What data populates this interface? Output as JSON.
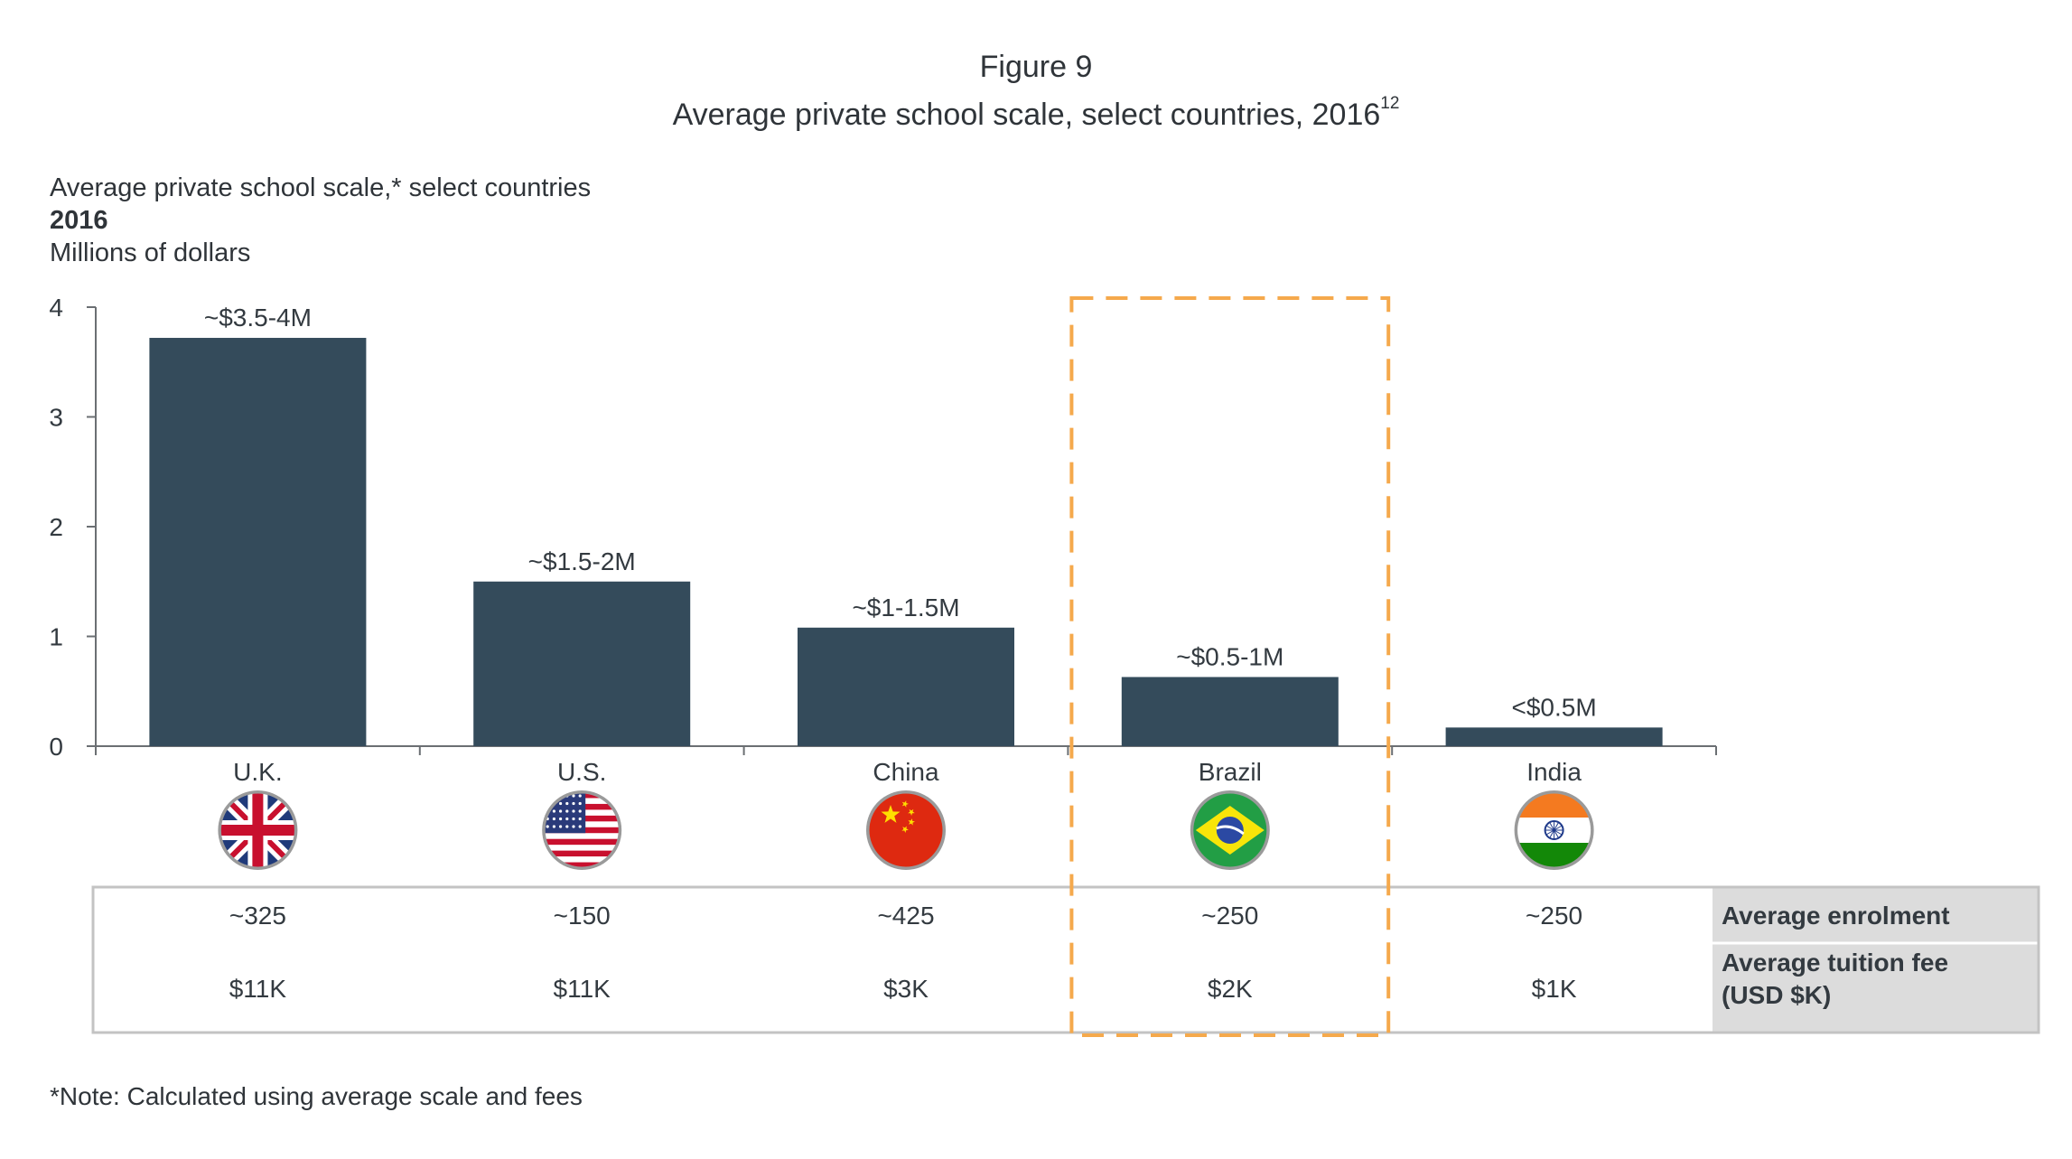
{
  "figure": {
    "label": "Figure 9",
    "subtitle": "Average private school scale, select countries, 2016",
    "subtitle_sup": "12"
  },
  "chart_data": {
    "type": "bar",
    "title": "Average private school scale,* select countries",
    "year": "2016",
    "ylabel": "Millions of dollars",
    "ylim": [
      0,
      4
    ],
    "yticks": [
      "0",
      "1",
      "2",
      "3",
      "4"
    ],
    "categories": [
      "U.K.",
      "U.S.",
      "China",
      "Brazil",
      "India"
    ],
    "values": [
      3.72,
      1.5,
      1.08,
      0.63,
      0.17
    ],
    "data_labels": [
      "~$3.5-4M",
      "~$1.5-2M",
      "~$1-1.5M",
      "~$0.5-1M",
      "<$0.5M"
    ],
    "highlight_category": "Brazil",
    "bar_color": "#344b5b",
    "highlight_color": "#f5a94c",
    "flags": [
      "uk-flag-icon",
      "us-flag-icon",
      "china-flag-icon",
      "brazil-flag-icon",
      "india-flag-icon"
    ]
  },
  "table": {
    "rows": [
      {
        "label": "Average enrolment",
        "values": [
          "~325",
          "~150",
          "~425",
          "~250",
          "~250"
        ]
      },
      {
        "label_lines": [
          "Average tuition fee",
          "(USD $K)"
        ],
        "values": [
          "$11K",
          "$11K",
          "$3K",
          "$2K",
          "$1K"
        ]
      }
    ]
  },
  "note": "*Note: Calculated using average scale and fees"
}
